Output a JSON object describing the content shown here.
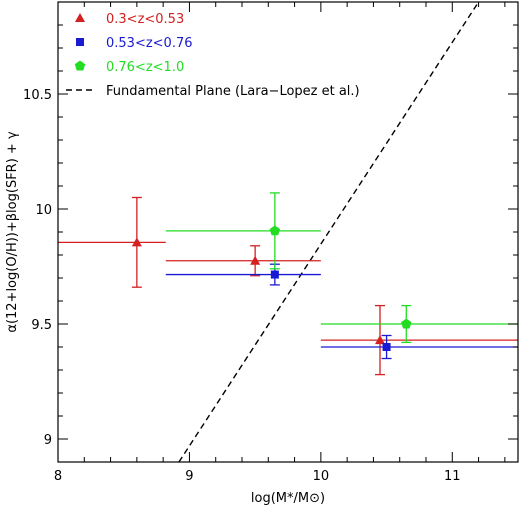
{
  "chart_data": {
    "type": "scatter",
    "title": "",
    "xlabel": "log(M*/M⊙)",
    "ylabel": "α(12+log(O/H))+βlog(SFR) + γ",
    "xlim": [
      8,
      11.5
    ],
    "ylim": [
      8.9,
      10.9
    ],
    "x_ticks": [
      8,
      9,
      10,
      11
    ],
    "y_ticks": [
      9,
      9.5,
      10,
      10.5
    ],
    "x_tick_labels": [
      "8",
      "9",
      "10",
      "11"
    ],
    "y_tick_labels": [
      "9",
      "9.5",
      "10",
      "10.5"
    ],
    "grid": false,
    "legend_position": "top-left",
    "series": [
      {
        "name": "0.3<z<0.53",
        "color": "#d42020",
        "marker": "triangle",
        "points": [
          {
            "x": 8.6,
            "y": 9.855,
            "xmin": 8.0,
            "xmax": 8.82,
            "ymin": 9.66,
            "ymax": 10.05
          },
          {
            "x": 9.5,
            "y": 9.775,
            "xmin": 8.82,
            "xmax": 10.0,
            "ymin": 9.71,
            "ymax": 9.84
          },
          {
            "x": 10.45,
            "y": 9.43,
            "xmin": 10.0,
            "xmax": 11.5,
            "ymin": 9.28,
            "ymax": 9.58
          }
        ]
      },
      {
        "name": "0.53<z<0.76",
        "color": "#1a1ad4",
        "marker": "square",
        "points": [
          {
            "x": 9.65,
            "y": 9.715,
            "xmin": 8.82,
            "xmax": 10.0,
            "ymin": 9.67,
            "ymax": 9.76
          },
          {
            "x": 10.5,
            "y": 9.4,
            "xmin": 10.0,
            "xmax": 11.5,
            "ymin": 9.35,
            "ymax": 9.45
          }
        ]
      },
      {
        "name": "0.76<z<1.0",
        "color": "#22dd22",
        "marker": "pentagon",
        "points": [
          {
            "x": 9.65,
            "y": 9.905,
            "xmin": 8.82,
            "xmax": 10.0,
            "ymin": 9.74,
            "ymax": 10.07
          },
          {
            "x": 10.65,
            "y": 9.5,
            "xmin": 10.0,
            "xmax": 11.5,
            "ymin": 9.42,
            "ymax": 9.58
          }
        ]
      }
    ],
    "lines": [
      {
        "name": "Fundamental Plane (Lara−Lopez et al.)",
        "color": "#000000",
        "style": "dashed",
        "x": [
          8.92,
          11.2
        ],
        "y": [
          8.9,
          10.9
        ]
      }
    ]
  }
}
